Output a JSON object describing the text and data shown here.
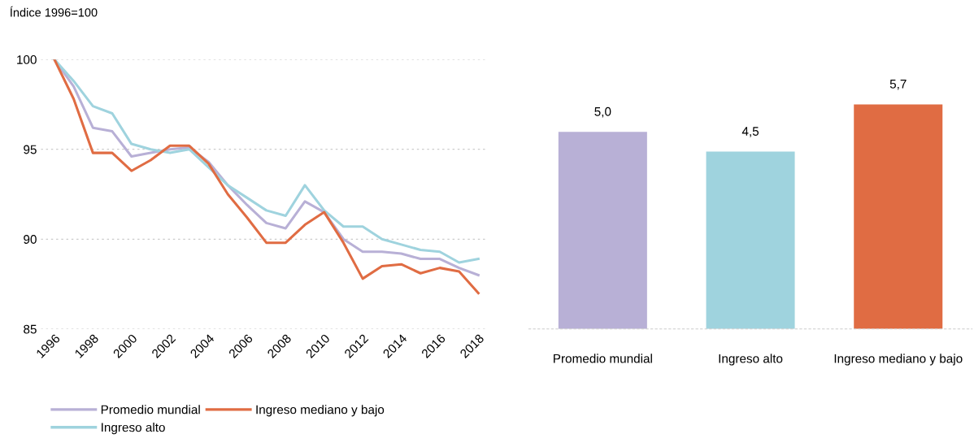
{
  "chart_data": [
    {
      "type": "line",
      "ylabel": "Índice 1996=100",
      "x": [
        1996,
        1997,
        1998,
        1999,
        2000,
        2001,
        2002,
        2003,
        2004,
        2005,
        2006,
        2007,
        2008,
        2009,
        2010,
        2011,
        2012,
        2013,
        2014,
        2015,
        2016,
        2017,
        2018
      ],
      "series": [
        {
          "name": "Promedio mundial",
          "color": "#b8b0d6",
          "values": [
            100,
            98.5,
            96.2,
            96.0,
            94.6,
            94.8,
            95.0,
            95.1,
            94.3,
            93.0,
            91.9,
            90.9,
            90.6,
            92.1,
            91.5,
            90.0,
            89.3,
            89.3,
            89.2,
            88.9,
            88.9,
            88.4,
            88.0
          ]
        },
        {
          "name": "Ingreso alto",
          "color": "#9fd3de",
          "values": [
            100,
            98.8,
            97.4,
            97.0,
            95.3,
            95.0,
            94.8,
            95.0,
            94.0,
            93.0,
            92.3,
            91.6,
            91.3,
            93.0,
            91.6,
            90.7,
            90.7,
            90.0,
            89.7,
            89.4,
            89.3,
            88.7,
            88.9
          ]
        },
        {
          "name": "Ingreso mediano y bajo",
          "color": "#e06c43",
          "values": [
            100,
            97.8,
            94.8,
            94.8,
            93.8,
            94.4,
            95.2,
            95.2,
            94.2,
            92.5,
            91.2,
            89.8,
            89.8,
            90.8,
            91.5,
            89.8,
            87.8,
            88.5,
            88.6,
            88.1,
            88.4,
            88.2,
            87.0
          ]
        }
      ],
      "xlim": [
        1995.3,
        2018.5
      ],
      "xticks": [
        1996,
        1998,
        2000,
        2002,
        2004,
        2006,
        2008,
        2010,
        2012,
        2014,
        2016,
        2018
      ],
      "ylim": [
        85,
        100
      ],
      "yticks": [
        85,
        90,
        95,
        100
      ],
      "grid": "y",
      "legend": "bottom",
      "line_style": "solid",
      "marker": "none"
    },
    {
      "type": "bar",
      "categories": [
        "Promedio mundial",
        "Ingreso alto",
        "Ingreso mediano y bajo"
      ],
      "values": [
        5.0,
        4.5,
        5.7
      ],
      "colors": [
        "#b8b0d6",
        "#9fd3de",
        "#e06c43"
      ],
      "value_labels": [
        "5,0",
        "4,5",
        "5,7"
      ]
    }
  ]
}
